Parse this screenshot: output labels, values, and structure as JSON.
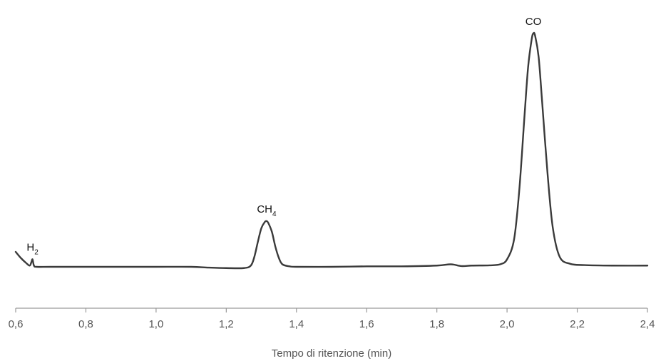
{
  "chart_data": {
    "type": "line",
    "title": "",
    "xlabel": "Tempo di ritenzione (min)",
    "ylabel": "",
    "xlim": [
      0.6,
      2.4
    ],
    "ylim": [
      0,
      1.0
    ],
    "grid": false,
    "x_ticks": [
      "0,6",
      "0,8",
      "1,0",
      "1,2",
      "1,4",
      "1,6",
      "1,8",
      "2,0",
      "2,2",
      "2,4"
    ],
    "x_tick_values": [
      0.6,
      0.8,
      1.0,
      1.2,
      1.4,
      1.6,
      1.8,
      2.0,
      2.2,
      2.4
    ],
    "series": [
      {
        "color": "#3a3a3a",
        "x": [
          0.6,
          0.615,
          0.63,
          0.64,
          0.645,
          0.648,
          0.652,
          0.66,
          0.7,
          0.8,
          0.9,
          1.0,
          1.1,
          1.15,
          1.2,
          1.25,
          1.27,
          1.28,
          1.29,
          1.3,
          1.31,
          1.315,
          1.32,
          1.33,
          1.34,
          1.35,
          1.36,
          1.38,
          1.4,
          1.5,
          1.6,
          1.7,
          1.8,
          1.84,
          1.87,
          1.9,
          1.95,
          1.98,
          2.0,
          2.02,
          2.035,
          2.05,
          2.06,
          2.07,
          2.075,
          2.08,
          2.09,
          2.1,
          2.115,
          2.13,
          2.15,
          2.18,
          2.22,
          2.3,
          2.4
        ],
        "y": [
          0.1,
          0.075,
          0.055,
          0.045,
          0.06,
          0.07,
          0.045,
          0.04,
          0.04,
          0.04,
          0.04,
          0.04,
          0.04,
          0.037,
          0.035,
          0.035,
          0.045,
          0.08,
          0.14,
          0.195,
          0.22,
          0.223,
          0.215,
          0.18,
          0.12,
          0.075,
          0.05,
          0.042,
          0.04,
          0.04,
          0.042,
          0.042,
          0.045,
          0.05,
          0.043,
          0.045,
          0.046,
          0.05,
          0.07,
          0.15,
          0.35,
          0.65,
          0.84,
          0.95,
          0.975,
          0.965,
          0.88,
          0.7,
          0.42,
          0.2,
          0.08,
          0.052,
          0.047,
          0.045,
          0.045
        ]
      }
    ],
    "annotations": [
      {
        "base": "H",
        "sub": "2",
        "x": 0.648,
        "y": 0.07
      },
      {
        "base": "CH",
        "sub": "4",
        "x": 1.315,
        "y": 0.223
      },
      {
        "base": "CO",
        "sub": "",
        "x": 2.075,
        "y": 0.975
      }
    ]
  }
}
